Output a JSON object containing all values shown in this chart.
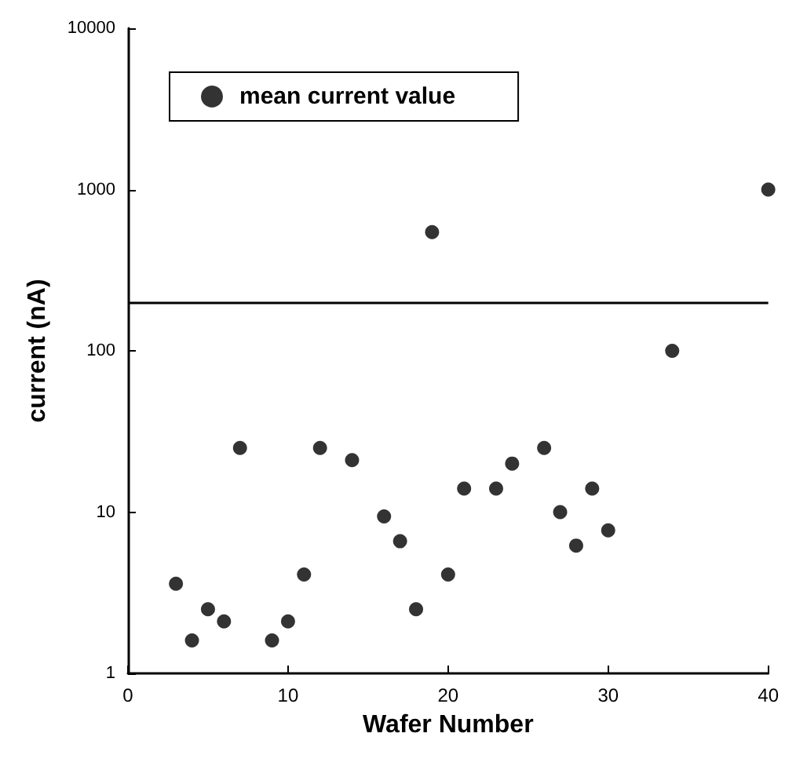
{
  "chart_data": {
    "type": "scatter",
    "xlabel": "Wafer Number",
    "ylabel": "current (nA)",
    "log": "y",
    "xlim": [
      0,
      40
    ],
    "xticks": [
      0,
      10,
      20,
      30,
      40
    ],
    "ylim": [
      1,
      10000
    ],
    "yticks": [
      1,
      10,
      100,
      1000,
      10000
    ],
    "grid": false,
    "legend": "top left",
    "marker": "circle",
    "x": [
      3,
      4,
      5,
      6,
      7,
      9,
      10,
      11,
      12,
      14,
      16,
      17,
      18,
      19,
      20,
      21,
      23,
      24,
      26,
      27,
      28,
      29,
      30,
      34,
      40
    ],
    "series": [
      {
        "name": "mean current value",
        "color": "#000000",
        "values": [
          3.6,
          1.6,
          2.5,
          2.1,
          25,
          1.6,
          2.1,
          4.1,
          25,
          21,
          9.4,
          6.6,
          2.5,
          545,
          4.1,
          14,
          14,
          20,
          25,
          10,
          6.2,
          14,
          7.7,
          100,
          1000
        ]
      }
    ],
    "ref_lines": [
      {
        "axis": "y",
        "value": 200,
        "color": "#000000",
        "line_style": "solid"
      }
    ]
  }
}
